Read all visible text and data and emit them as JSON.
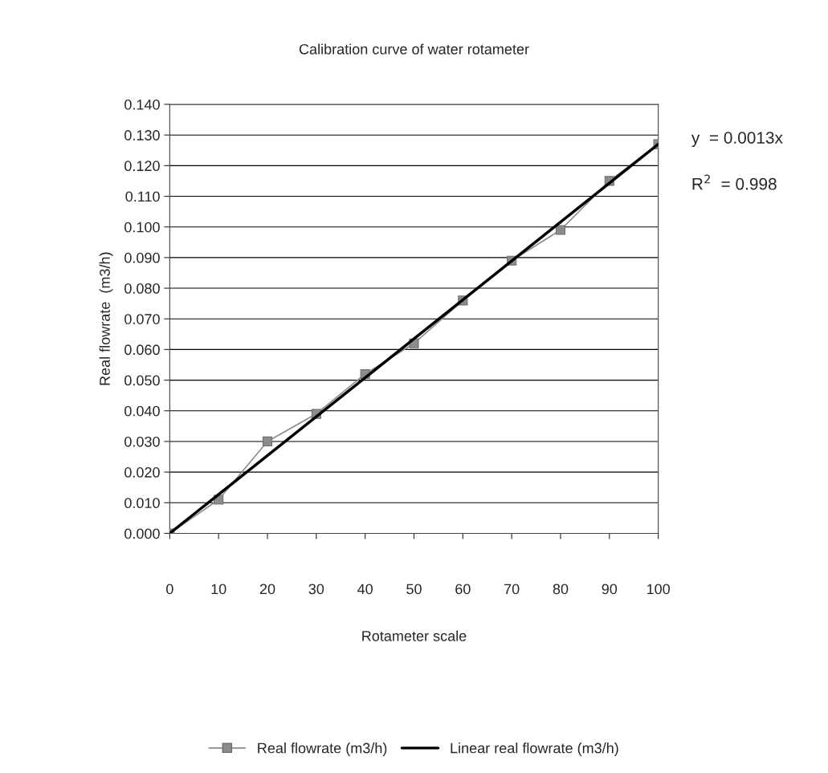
{
  "chart_data": {
    "type": "line",
    "title": "Calibration curve of water rotameter",
    "xlabel": "Rotameter scale",
    "ylabel": "Real flowrate  (m3/h)",
    "series": [
      {
        "name": "Real flowrate (m3/h)",
        "color": "#8c8c8c",
        "marker": "square",
        "x": [
          0,
          10,
          20,
          30,
          40,
          50,
          60,
          70,
          80,
          90,
          100
        ],
        "values": [
          0.0,
          0.011,
          0.03,
          0.039,
          0.052,
          0.062,
          0.076,
          0.089,
          0.099,
          0.115,
          0.127
        ]
      },
      {
        "name": "Linear real flowrate (m3/h)",
        "color": "#000000",
        "marker": "none",
        "x": [
          0,
          100
        ],
        "values": [
          0.0,
          0.127
        ]
      }
    ],
    "annotations": [
      "y  = 0.0013x",
      "R$^{2}$  = 0.998"
    ],
    "xlim": [
      0,
      100
    ],
    "xticks": [
      0,
      10,
      20,
      30,
      40,
      50,
      60,
      70,
      80,
      90,
      100
    ],
    "ylim": [
      0,
      0.14
    ],
    "yticks": [
      {
        "value": 0,
        "label": "0.000"
      },
      {
        "value": 0.01,
        "label": "0.010"
      },
      {
        "value": 0.02,
        "label": "0.020"
      },
      {
        "value": 0.03,
        "label": "0.030"
      },
      {
        "value": 0.04,
        "label": "0.040"
      },
      {
        "value": 0.05,
        "label": "0.050"
      },
      {
        "value": 0.06,
        "label": "0.060"
      },
      {
        "value": 0.07,
        "label": "0.070"
      },
      {
        "value": 0.08,
        "label": "0.080"
      },
      {
        "value": 0.09,
        "label": "0.090"
      },
      {
        "value": 0.1,
        "label": "0.100"
      },
      {
        "value": 0.11,
        "label": "0.110"
      },
      {
        "value": 0.12,
        "label": "0.120"
      },
      {
        "value": 0.13,
        "label": "0.130"
      },
      {
        "value": 0.14,
        "label": "0.140"
      }
    ],
    "grid": "y",
    "legend": "bottom"
  }
}
